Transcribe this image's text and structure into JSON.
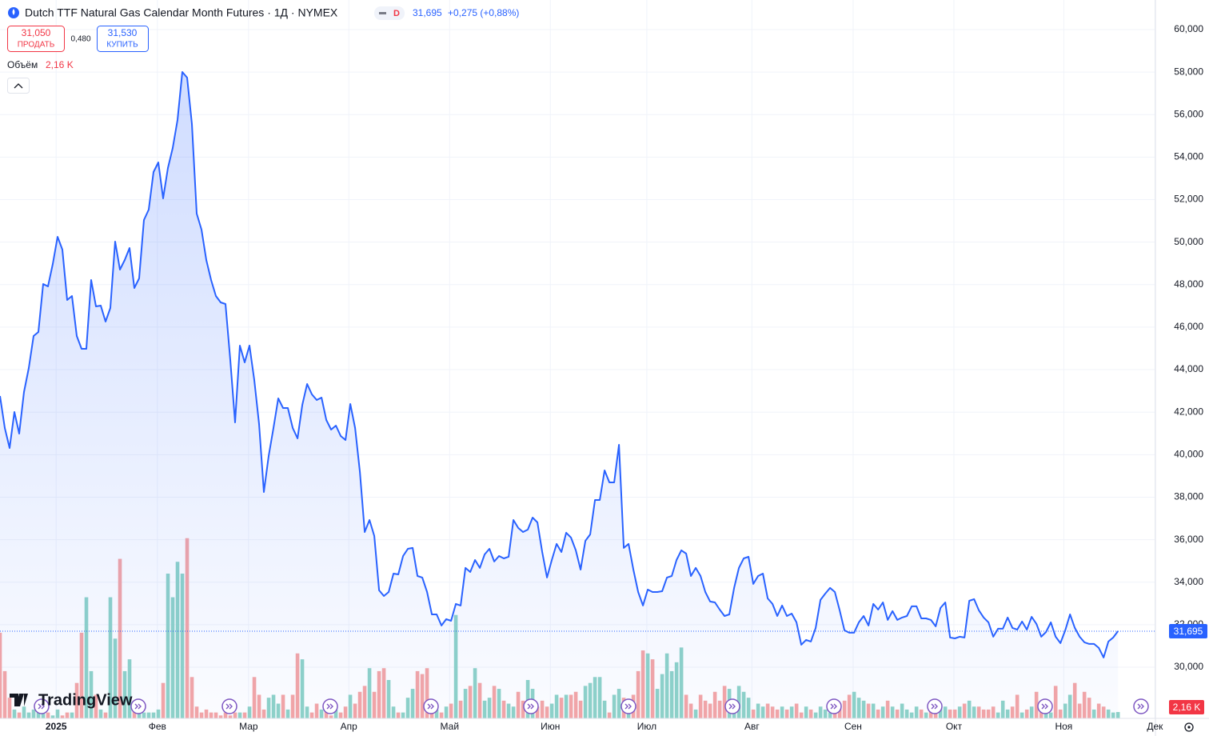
{
  "header": {
    "title": "Dutch TTF Natural Gas Calendar Month Futures · 1Д · NYMEX",
    "badge": "D",
    "price": "31,695",
    "change": "+0,275 (+0,88%)",
    "sell_price": "31,050",
    "sell_label": "ПРОДАТЬ",
    "spread": "0,480",
    "buy_price": "31,530",
    "buy_label": "КУПИТЬ",
    "logo": "TradingView"
  },
  "chart_data": {
    "type": "line",
    "ylim": [
      27590,
      61393
    ],
    "yticks": [
      {
        "value": 30000,
        "label": "30,000"
      },
      {
        "value": 32000,
        "label": "32,000"
      },
      {
        "value": 34000,
        "label": "34,000"
      },
      {
        "value": 36000,
        "label": "36,000"
      },
      {
        "value": 38000,
        "label": "38,000"
      },
      {
        "value": 40000,
        "label": "40,000"
      },
      {
        "value": 42000,
        "label": "42,000"
      },
      {
        "value": 44000,
        "label": "44,000"
      },
      {
        "value": 46000,
        "label": "46,000"
      },
      {
        "value": 48000,
        "label": "48,000"
      },
      {
        "value": 50000,
        "label": "50,000"
      },
      {
        "value": 52000,
        "label": "52,000"
      },
      {
        "value": 54000,
        "label": "54,000"
      },
      {
        "value": 56000,
        "label": "56,000"
      },
      {
        "value": 58000,
        "label": "58,000"
      },
      {
        "value": 60000,
        "label": "60,000"
      }
    ],
    "xlim": [
      0,
      240.8
    ],
    "xticks": [
      {
        "value": 11.7,
        "label": "2025"
      },
      {
        "value": 32.8,
        "label": "Фев"
      },
      {
        "value": 51.8,
        "label": "Мар"
      },
      {
        "value": 72.7,
        "label": "Апр"
      },
      {
        "value": 93.7,
        "label": "Май"
      },
      {
        "value": 114.7,
        "label": "Июн"
      },
      {
        "value": 134.8,
        "label": "Июл"
      },
      {
        "value": 156.7,
        "label": "Авг"
      },
      {
        "value": 177.8,
        "label": "Сен"
      },
      {
        "value": 198.8,
        "label": "Окт"
      },
      {
        "value": 221.7,
        "label": "Ноя"
      },
      {
        "value": 240.7,
        "label": "Дек"
      }
    ],
    "grid": true,
    "y2lim": [
      0,
      62
    ],
    "series": [
      {
        "color": "#2962ff",
        "last_value_label": "31,695",
        "values": [
          42760,
          41256,
          40315,
          42008,
          40992,
          42949,
          44079,
          45584,
          45772,
          48031,
          47918,
          48972,
          50252,
          49649,
          47278,
          47466,
          45584,
          44982,
          44982,
          48219,
          46977,
          47015,
          46262,
          46902,
          50026,
          48708,
          49160,
          49725,
          47843,
          48294,
          51042,
          51531,
          53300,
          53752,
          52058,
          53489,
          54430,
          55747,
          58005,
          57742,
          55559,
          51343,
          50590,
          49160,
          48219,
          47466,
          47165,
          47090,
          44455,
          41519,
          45133,
          44342,
          45133,
          43514,
          41444,
          38244,
          39938,
          41256,
          42648,
          42197,
          42197,
          41256,
          40766,
          42347,
          43326,
          42836,
          42573,
          42686,
          41632,
          41180,
          41369,
          40879,
          40691,
          42385,
          41256,
          39185,
          36362,
          36927,
          36174,
          33615,
          33351,
          33539,
          34405,
          34367,
          35233,
          35572,
          35610,
          34292,
          34217,
          33539,
          32485,
          32485,
          31959,
          32260,
          32184,
          32975,
          32900,
          34669,
          34480,
          35045,
          34669,
          35308,
          35572,
          34970,
          35233,
          35120,
          35196,
          36927,
          36551,
          36362,
          36475,
          37040,
          36814,
          35421,
          34217,
          35045,
          35798,
          35421,
          36325,
          36099,
          35497,
          34593,
          35948,
          36249,
          37868,
          37868,
          39261,
          38696,
          38696,
          40465,
          35610,
          35798,
          34593,
          33539,
          32900,
          33652,
          33539,
          33539,
          33577,
          34217,
          34292,
          35045,
          35497,
          35346,
          34292,
          34669,
          34292,
          33539,
          33088,
          33050,
          32711,
          32410,
          32485,
          33728,
          34669,
          35120,
          35196,
          33916,
          34292,
          34405,
          33238,
          32975,
          32410,
          32900,
          32410,
          32523,
          32109,
          31055,
          31281,
          31206,
          31846,
          33163,
          33464,
          33728,
          33539,
          32674,
          31733,
          31620,
          31620,
          32109,
          32410,
          31959,
          32975,
          32711,
          33050,
          32222,
          32636,
          32222,
          32335,
          32410,
          32862,
          32862,
          32297,
          32297,
          32222,
          31921,
          32787,
          33050,
          31394,
          31356,
          31432,
          31394,
          33125,
          33201,
          32674,
          32335,
          32109,
          31432,
          31808,
          31808,
          32335,
          31846,
          31770,
          32147,
          31770,
          32372,
          32034,
          31432,
          31657,
          32109,
          31432,
          31131,
          31733,
          32485,
          31846,
          31432,
          31168,
          31093,
          31093,
          30905,
          30453,
          31206,
          31394,
          31695
        ]
      },
      {
        "name": "Объём",
        "axis": "y2",
        "up_color": "#8fd3c8",
        "down_color": "#f5a6a6",
        "last_value_label": "2,16 K",
        "values": [
          29,
          16,
          7,
          3,
          2,
          4,
          2,
          3,
          2,
          2,
          2,
          1,
          3,
          1,
          2,
          2,
          12,
          29,
          41,
          16,
          8,
          3,
          2,
          41,
          27,
          54,
          16,
          20,
          6,
          3,
          2,
          2,
          2,
          3,
          12,
          49,
          41,
          53,
          49,
          61,
          14,
          4,
          2,
          3,
          2,
          2,
          1,
          2,
          1,
          2,
          2,
          2,
          4,
          14,
          8,
          3,
          7,
          8,
          5,
          8,
          3,
          8,
          22,
          20,
          4,
          2,
          5,
          3,
          3,
          1,
          3,
          2,
          4,
          8,
          5,
          9,
          11,
          17,
          9,
          16,
          17,
          13,
          4,
          2,
          2,
          7,
          10,
          16,
          15,
          17,
          3,
          3,
          2,
          4,
          5,
          35,
          6,
          10,
          11,
          17,
          12,
          6,
          7,
          11,
          10,
          6,
          5,
          4,
          9,
          6,
          13,
          10,
          4,
          6,
          4,
          5,
          8,
          7,
          8,
          8,
          9,
          6,
          11,
          12,
          14,
          14,
          6,
          2,
          8,
          10,
          7,
          5,
          8,
          16,
          23,
          22,
          20,
          10,
          15,
          22,
          16,
          19,
          24,
          8,
          5,
          3,
          8,
          6,
          5,
          9,
          6,
          11,
          10,
          6,
          11,
          9,
          7,
          3,
          5,
          4,
          5,
          4,
          3,
          4,
          3,
          4,
          5,
          2,
          4,
          3,
          2,
          4,
          3,
          2,
          3,
          5,
          6,
          8,
          9,
          7,
          6,
          5,
          5,
          3,
          4,
          6,
          4,
          3,
          5,
          3,
          2,
          4,
          3,
          2,
          4,
          5,
          5,
          4,
          3,
          3,
          4,
          5,
          6,
          4,
          4,
          3,
          3,
          4,
          2,
          6,
          3,
          4,
          8,
          2,
          3,
          4,
          9,
          6,
          4,
          2,
          11,
          3,
          5,
          8,
          12,
          5,
          9,
          7,
          3,
          5,
          4,
          3,
          2,
          2.16
        ]
      }
    ]
  }
}
